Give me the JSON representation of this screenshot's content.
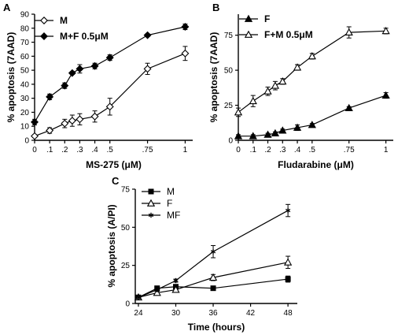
{
  "chart_data": [
    {
      "panel": "A",
      "type": "line",
      "xlabel": "MS-275 (μM)",
      "ylabel": "% apoptosis (7AAD)",
      "x_ticks": [
        0,
        0.1,
        0.2,
        0.3,
        0.4,
        0.5,
        0.75,
        1
      ],
      "x_tick_labels": [
        "0",
        ".1",
        ".2",
        ".3",
        ".4",
        ".5",
        ".75",
        "1"
      ],
      "y_ticks": [
        0,
        10,
        20,
        30,
        40,
        50,
        60,
        70,
        80,
        90
      ],
      "ylim": [
        0,
        90
      ],
      "xlim": [
        0,
        1.05
      ],
      "legend_position": "top-left",
      "series": [
        {
          "name": "M",
          "marker": "open-diamond",
          "x": [
            0,
            0.1,
            0.2,
            0.25,
            0.3,
            0.4,
            0.5,
            0.75,
            1
          ],
          "y": [
            3,
            7,
            12,
            14,
            15,
            17,
            24,
            51,
            62
          ],
          "err": [
            1,
            2,
            3,
            4,
            4,
            4,
            6,
            4,
            5
          ]
        },
        {
          "name": "M+F 0.5μM",
          "marker": "filled-diamond",
          "x": [
            0,
            0.1,
            0.2,
            0.25,
            0.3,
            0.4,
            0.5,
            0.75,
            1
          ],
          "y": [
            13,
            31,
            39,
            48,
            51,
            53,
            59,
            75,
            81
          ],
          "err": [
            2,
            2,
            2,
            1,
            3,
            2,
            2,
            1,
            2
          ]
        }
      ]
    },
    {
      "panel": "B",
      "type": "line",
      "xlabel": "Fludarabine (μM)",
      "ylabel": "% apoptosis (7AAD)",
      "x_ticks": [
        0,
        0.1,
        0.2,
        0.3,
        0.4,
        0.5,
        0.75,
        1
      ],
      "x_tick_labels": [
        "0",
        ".1",
        ".2",
        ".3",
        ".4",
        ".5",
        ".75",
        "1"
      ],
      "y_ticks": [
        0,
        25,
        50,
        75
      ],
      "ylim": [
        0,
        90
      ],
      "xlim": [
        0,
        1.05
      ],
      "legend_position": "top-left",
      "series": [
        {
          "name": "F",
          "marker": "filled-triangle",
          "x": [
            0,
            0.1,
            0.2,
            0.25,
            0.3,
            0.4,
            0.5,
            0.75,
            1
          ],
          "y": [
            3,
            3,
            4,
            5,
            7,
            9,
            11,
            23,
            32
          ],
          "err": [
            1,
            1,
            1,
            1,
            1,
            2,
            1,
            1,
            2
          ]
        },
        {
          "name": "F+M 0.5μM",
          "marker": "open-triangle",
          "x": [
            0,
            0.1,
            0.2,
            0.25,
            0.3,
            0.4,
            0.5,
            0.75,
            1
          ],
          "y": [
            20,
            28,
            35,
            39,
            42,
            52,
            60,
            77,
            78
          ],
          "err": [
            3,
            4,
            3,
            3,
            2,
            2,
            2,
            4,
            2
          ]
        }
      ]
    },
    {
      "panel": "C",
      "type": "line",
      "xlabel": "Time (hours)",
      "ylabel": "% apoptosis (A/PI)",
      "x_ticks": [
        24,
        30,
        36,
        42,
        48
      ],
      "x_tick_labels": [
        "24",
        "30",
        "36",
        "42",
        "48"
      ],
      "y_ticks": [
        0,
        25,
        50,
        75
      ],
      "ylim": [
        0,
        75
      ],
      "xlim": [
        23.5,
        49.5
      ],
      "legend_position": "top-left",
      "series": [
        {
          "name": "M",
          "marker": "filled-square",
          "x": [
            24,
            27,
            30,
            36,
            48
          ],
          "y": [
            4,
            10,
            11,
            10,
            16
          ],
          "err": [
            1,
            1,
            1,
            1,
            2
          ]
        },
        {
          "name": "F",
          "marker": "open-triangle",
          "x": [
            24,
            27,
            30,
            36,
            48
          ],
          "y": [
            4,
            7,
            9,
            17,
            27
          ],
          "err": [
            1,
            1,
            1,
            2,
            4
          ]
        },
        {
          "name": "MF",
          "marker": "star",
          "x": [
            24,
            27,
            30,
            36,
            48
          ],
          "y": [
            4,
            9,
            15,
            34,
            61
          ],
          "err": [
            1,
            1,
            1,
            4,
            4
          ]
        }
      ]
    }
  ]
}
